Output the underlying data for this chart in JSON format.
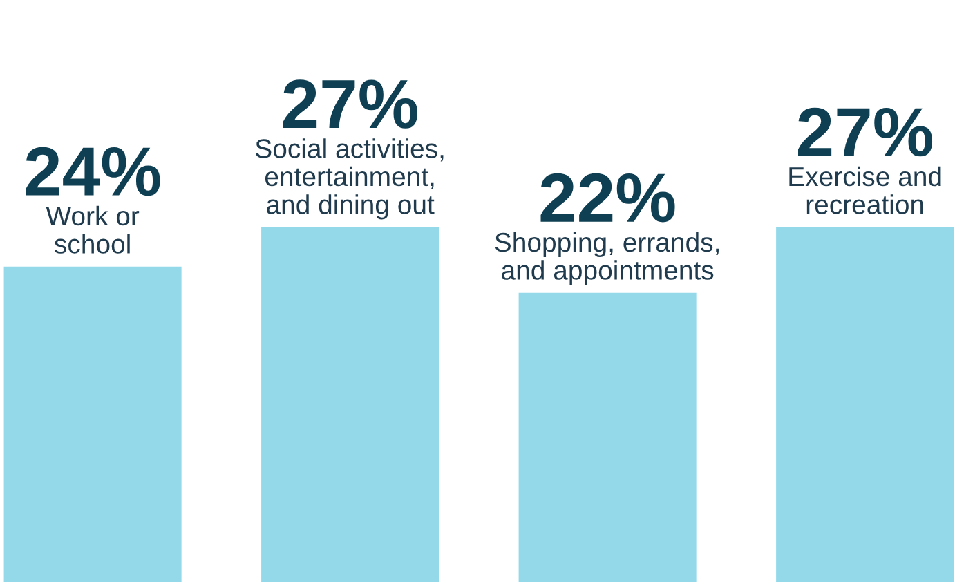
{
  "chart_data": {
    "type": "bar",
    "categories": [
      "Work or\nschool",
      "Social activities,\nentertainment,\nand dining out",
      "Shopping, errands,\nand appointments",
      "Exercise and\nrecreation"
    ],
    "values": [
      24,
      27,
      22,
      27
    ],
    "value_labels": [
      "24%",
      "27%",
      "22%",
      "27%"
    ],
    "color": "#93d9ea"
  }
}
